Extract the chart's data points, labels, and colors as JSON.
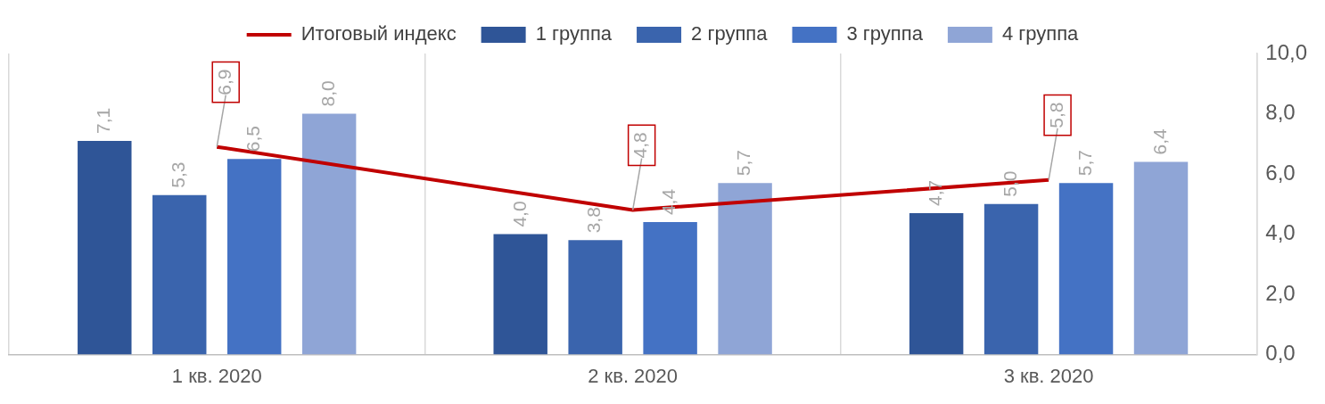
{
  "chart_data": {
    "type": "bar",
    "categories": [
      "1 кв. 2020",
      "2 кв. 2020",
      "3 кв. 2020"
    ],
    "series": [
      {
        "name": "1 группа",
        "color": "#2f5597",
        "values": [
          7.1,
          4.0,
          4.7
        ],
        "value_labels": [
          "7,1",
          "4,0",
          "4,7"
        ]
      },
      {
        "name": "2 группа",
        "color": "#3a64ad",
        "values": [
          5.3,
          3.8,
          5.0
        ],
        "value_labels": [
          "5,3",
          "3,8",
          "5,0"
        ]
      },
      {
        "name": "3 группа",
        "color": "#4472c4",
        "values": [
          6.5,
          4.4,
          5.7
        ],
        "value_labels": [
          "6,5",
          "4,4",
          "5,7"
        ]
      },
      {
        "name": "4 группа",
        "color": "#8fa5d6",
        "values": [
          8.0,
          5.7,
          6.4
        ],
        "value_labels": [
          "8,0",
          "5,7",
          "6,4"
        ]
      },
      {
        "name": "Итоговый индекс",
        "type": "line",
        "color": "#c00000",
        "values": [
          6.9,
          4.8,
          5.8
        ],
        "value_labels": [
          "6,9",
          "4,8",
          "5,8"
        ]
      }
    ],
    "ylim": [
      0,
      10
    ],
    "yticks": [
      {
        "value": 0,
        "label": "0,0"
      },
      {
        "value": 2,
        "label": "2,0"
      },
      {
        "value": 4,
        "label": "4,0"
      },
      {
        "value": 6,
        "label": "6,0"
      },
      {
        "value": 8,
        "label": "8,0"
      },
      {
        "value": 10,
        "label": "10,0"
      }
    ],
    "grid": "x",
    "legend": "top",
    "marker": "none"
  }
}
